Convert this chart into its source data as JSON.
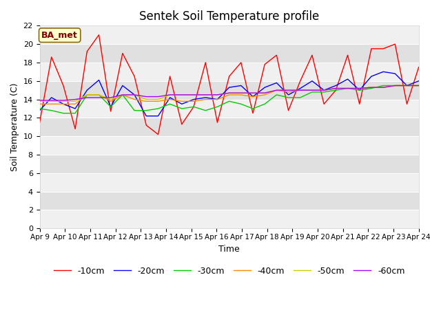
{
  "title": "Sentek Soil Temperature profile",
  "xlabel": "Time",
  "ylabel": "Soil Temperature (C)",
  "annotation": "BA_met",
  "ylim": [
    0,
    22
  ],
  "yticks": [
    0,
    2,
    4,
    6,
    8,
    10,
    12,
    14,
    16,
    18,
    20,
    22
  ],
  "xtick_labels": [
    "Apr 9",
    "Apr 10",
    "Apr 11",
    "Apr 12",
    "Apr 13",
    "Apr 14",
    "Apr 15",
    "Apr 16",
    "Apr 17",
    "Apr 18",
    "Apr 19",
    "Apr 20",
    "Apr 21",
    "Apr 22",
    "Apr 23",
    "Apr 24"
  ],
  "bg_color": "#ffffff",
  "plot_bg_color": "#e8e8e8",
  "band_color_light": "#f0f0f0",
  "band_color_dark": "#e0e0e0",
  "title_fontsize": 12,
  "axis_label_fontsize": 9,
  "tick_fontsize": 8,
  "legend_fontsize": 9,
  "series_order": [
    "-10cm",
    "-20cm",
    "-30cm",
    "-40cm",
    "-50cm",
    "-60cm"
  ],
  "series": {
    "-10cm": {
      "color": "#ff0000",
      "linewidth": 1.0,
      "values": [
        11.5,
        18.6,
        15.5,
        10.8,
        19.2,
        21.0,
        12.7,
        19.0,
        16.5,
        11.2,
        10.2,
        16.5,
        11.3,
        13.2,
        18.0,
        11.5,
        16.5,
        18.0,
        12.5,
        17.8,
        18.8,
        12.8,
        16.0,
        18.8,
        13.5,
        15.0,
        18.8,
        13.5,
        19.5,
        19.5,
        20.0,
        13.5,
        17.5
      ]
    },
    "-20cm": {
      "color": "#0000ff",
      "linewidth": 1.0,
      "values": [
        12.8,
        14.2,
        13.5,
        13.0,
        15.0,
        16.1,
        13.2,
        15.5,
        14.5,
        12.2,
        12.2,
        14.2,
        13.5,
        14.0,
        14.2,
        14.0,
        15.3,
        15.5,
        14.3,
        15.3,
        15.8,
        14.5,
        15.2,
        16.0,
        15.0,
        15.5,
        16.2,
        15.0,
        16.5,
        17.0,
        16.8,
        15.5,
        16.0
      ]
    },
    "-30cm": {
      "color": "#00cc00",
      "linewidth": 1.0,
      "values": [
        13.0,
        12.8,
        12.5,
        12.5,
        14.5,
        14.5,
        13.2,
        14.5,
        12.8,
        12.8,
        13.0,
        13.5,
        13.0,
        13.2,
        12.8,
        13.2,
        13.8,
        13.5,
        13.0,
        13.5,
        14.5,
        14.2,
        14.2,
        14.8,
        14.8,
        15.0,
        15.2,
        15.0,
        15.2,
        15.5,
        15.5,
        15.5,
        15.5
      ]
    },
    "-40cm": {
      "color": "#ff8800",
      "linewidth": 1.0,
      "values": [
        13.5,
        13.5,
        13.5,
        13.5,
        14.5,
        14.5,
        13.8,
        14.5,
        14.0,
        13.8,
        13.8,
        14.0,
        13.8,
        13.8,
        14.0,
        14.0,
        14.5,
        14.5,
        14.3,
        14.5,
        15.0,
        14.8,
        15.0,
        15.0,
        15.0,
        15.2,
        15.2,
        15.2,
        15.3,
        15.3,
        15.5,
        15.5,
        15.5
      ]
    },
    "-50cm": {
      "color": "#cccc00",
      "linewidth": 1.0,
      "values": [
        13.8,
        13.8,
        13.8,
        13.8,
        14.5,
        14.5,
        14.0,
        14.5,
        14.5,
        14.0,
        14.0,
        14.5,
        14.5,
        14.5,
        14.5,
        14.5,
        14.7,
        14.7,
        14.7,
        14.7,
        15.0,
        15.0,
        15.0,
        15.0,
        15.0,
        15.2,
        15.2,
        15.2,
        15.3,
        15.3,
        15.5,
        15.5,
        15.5
      ]
    },
    "-60cm": {
      "color": "#aa00ff",
      "linewidth": 1.0,
      "values": [
        13.9,
        13.9,
        13.9,
        14.0,
        14.2,
        14.2,
        14.2,
        14.5,
        14.5,
        14.3,
        14.3,
        14.5,
        14.5,
        14.5,
        14.5,
        14.5,
        14.7,
        14.7,
        14.7,
        14.7,
        15.0,
        15.0,
        15.0,
        15.0,
        15.0,
        15.2,
        15.2,
        15.2,
        15.3,
        15.3,
        15.5,
        15.5,
        15.5
      ]
    }
  }
}
